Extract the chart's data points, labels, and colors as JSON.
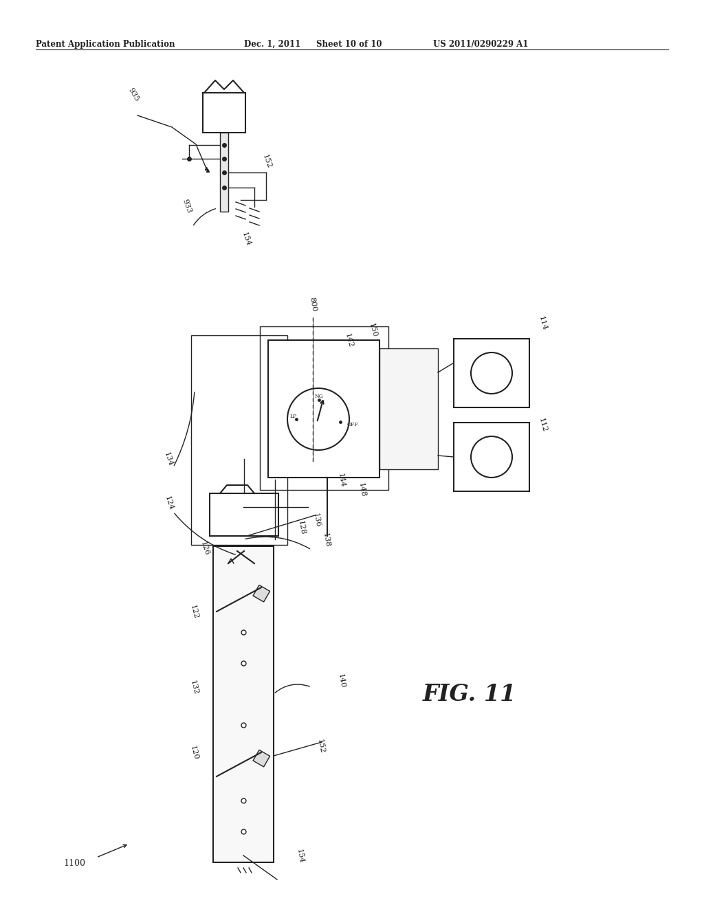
{
  "bg_color": "#ffffff",
  "header_text": "Patent Application Publication",
  "header_date": "Dec. 1, 2011",
  "header_sheet": "Sheet 10 of 10",
  "header_patent": "US 2011/0290229 A1",
  "fig_label": "FIG. 11",
  "diagram_label": "1100"
}
